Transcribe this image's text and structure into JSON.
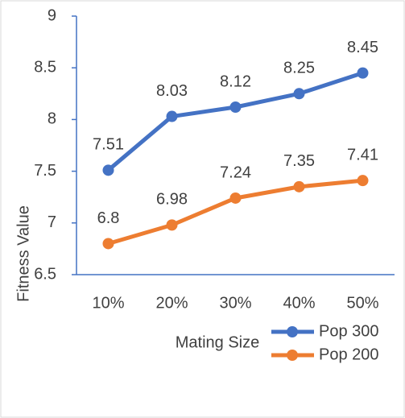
{
  "chart_data": {
    "type": "line",
    "x_label": "Mating Size",
    "y_label": "Fitness Value",
    "categories": [
      "10%",
      "20%",
      "30%",
      "40%",
      "50%"
    ],
    "series": [
      {
        "name": "Pop 300",
        "color": "#4472c4",
        "values": [
          7.51,
          8.03,
          8.12,
          8.25,
          8.45
        ]
      },
      {
        "name": "Pop 200",
        "color": "#ed7d31",
        "values": [
          6.8,
          6.98,
          7.24,
          7.35,
          7.41
        ]
      }
    ],
    "ylim": [
      6.5,
      9
    ],
    "yticks": [
      6.5,
      7,
      7.5,
      8,
      8.5,
      9
    ],
    "grid": false,
    "legend": "bottom-right"
  }
}
